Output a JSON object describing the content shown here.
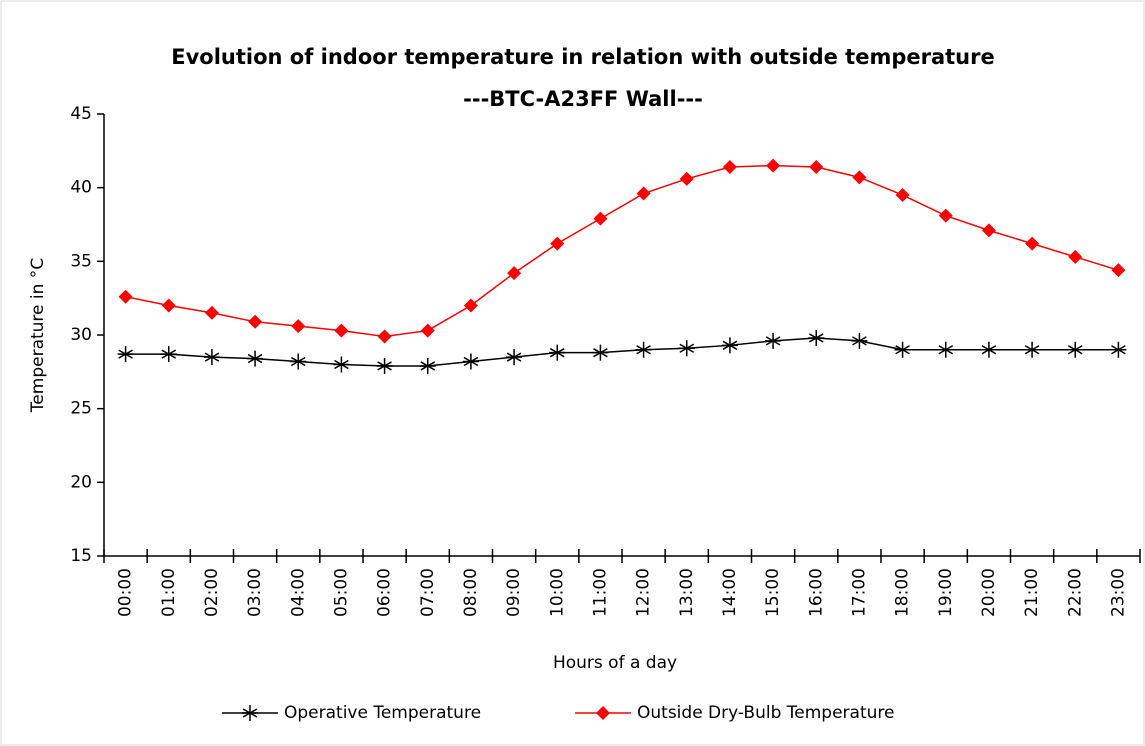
{
  "chart_data": {
    "type": "line",
    "title": "Evolution of indoor temperature in relation with outside temperature",
    "subtitle": "---BTC-A23FF Wall---",
    "x_label": "Hours of a day",
    "y_label": "Temperature  in °C",
    "categories": [
      "00:00",
      "01:00",
      "02:00",
      "03:00",
      "04:00",
      "05:00",
      "06:00",
      "07:00",
      "08:00",
      "09:00",
      "10:00",
      "11:00",
      "12:00",
      "13:00",
      "14:00",
      "15:00",
      "16:00",
      "17:00",
      "18:00",
      "19:00",
      "20:00",
      "21:00",
      "22:00",
      "23:00"
    ],
    "series": [
      {
        "name": "Operative Temperature",
        "color": "#000000",
        "marker": "asterisk",
        "values": [
          28.7,
          28.7,
          28.5,
          28.4,
          28.2,
          28.0,
          27.9,
          27.9,
          28.2,
          28.5,
          28.8,
          28.8,
          29.0,
          29.1,
          29.3,
          29.6,
          29.8,
          29.6,
          29.0,
          29.0,
          29.0,
          29.0,
          29.0,
          29.0
        ]
      },
      {
        "name": "Outside Dry-Bulb Temperature",
        "color": "#ff0000",
        "marker": "diamond",
        "values": [
          32.6,
          32.0,
          31.5,
          30.9,
          30.6,
          30.3,
          29.9,
          30.3,
          32.0,
          34.2,
          36.2,
          37.9,
          39.6,
          40.6,
          41.4,
          41.5,
          41.4,
          40.7,
          39.5,
          38.1,
          37.1,
          36.2,
          35.3,
          34.4
        ]
      }
    ],
    "ylim": [
      15,
      45
    ],
    "yticks": [
      15,
      20,
      25,
      30,
      35,
      40,
      45
    ],
    "grid": false,
    "legend": "bottom"
  }
}
